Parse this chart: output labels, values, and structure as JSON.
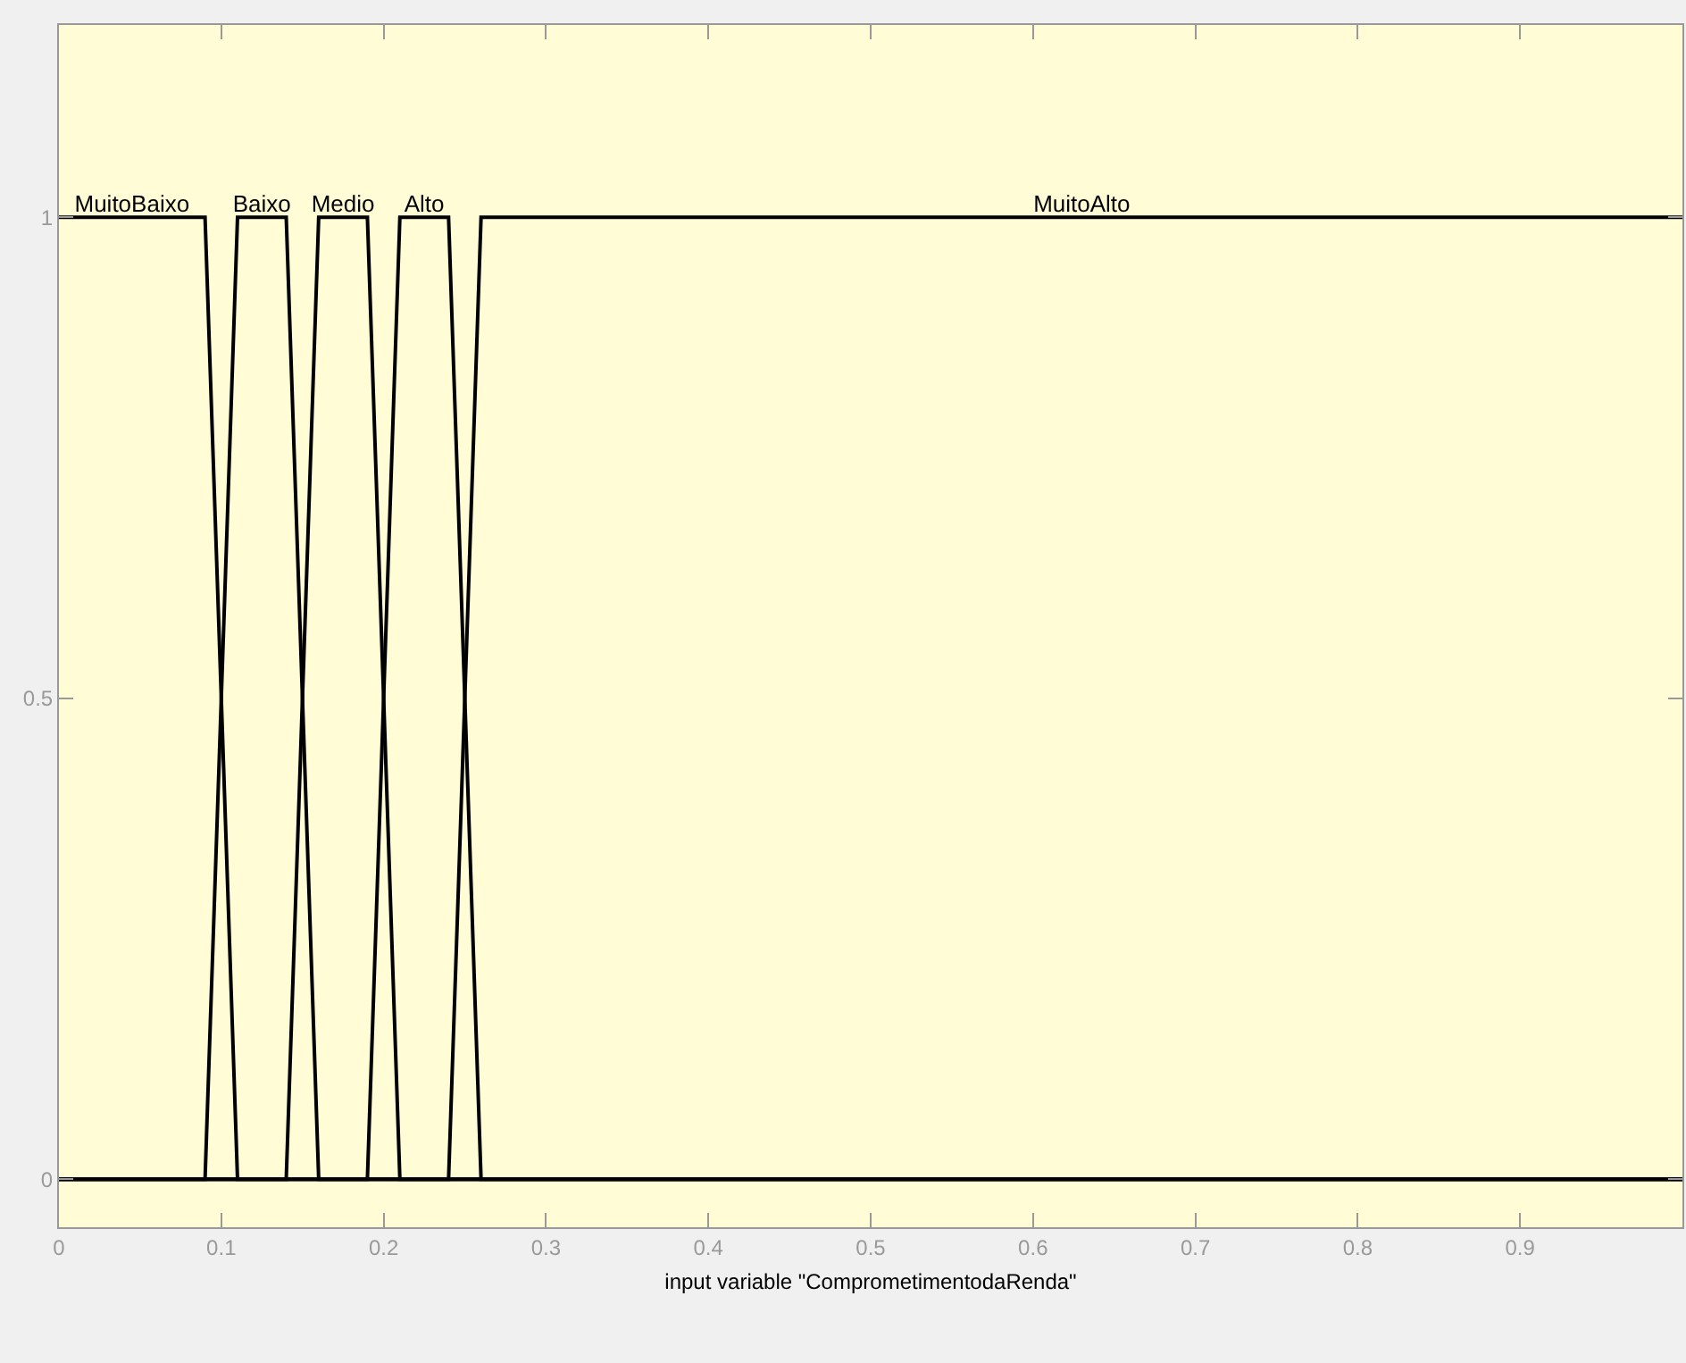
{
  "chart_data": {
    "type": "line",
    "xlabel": "input variable \"ComprometimentodaRenda\"",
    "series": [
      {
        "name": "MuitoBaixo",
        "color": "#000000",
        "x": [
          0,
          0.09,
          0.11,
          1
        ],
        "values": [
          1,
          1,
          0,
          0
        ]
      },
      {
        "name": "Baixo",
        "color": "#000000",
        "x": [
          0,
          0.09,
          0.11,
          0.14,
          0.16,
          1
        ],
        "values": [
          0,
          0,
          1,
          1,
          0,
          0
        ]
      },
      {
        "name": "Medio",
        "color": "#000000",
        "x": [
          0,
          0.14,
          0.16,
          0.19,
          0.21,
          1
        ],
        "values": [
          0,
          0,
          1,
          1,
          0,
          0
        ]
      },
      {
        "name": "Alto",
        "color": "#000000",
        "x": [
          0,
          0.19,
          0.21,
          0.24,
          0.26,
          1
        ],
        "values": [
          0,
          0,
          1,
          1,
          0,
          0
        ]
      },
      {
        "name": "MuitoAlto",
        "color": "#000000",
        "x": [
          0,
          0.24,
          0.26,
          1
        ],
        "values": [
          0,
          0,
          1,
          1
        ]
      }
    ],
    "xlim": [
      0,
      1
    ],
    "xticks": [
      0,
      0.1,
      0.2,
      0.3,
      0.4,
      0.5,
      0.6,
      0.7,
      0.8,
      0.9
    ],
    "ylim": [
      -0.05,
      1.2
    ],
    "yticks": [
      0,
      0.5,
      1
    ],
    "grid": false,
    "legend": false,
    "marker": "none",
    "line_style": "solid"
  }
}
